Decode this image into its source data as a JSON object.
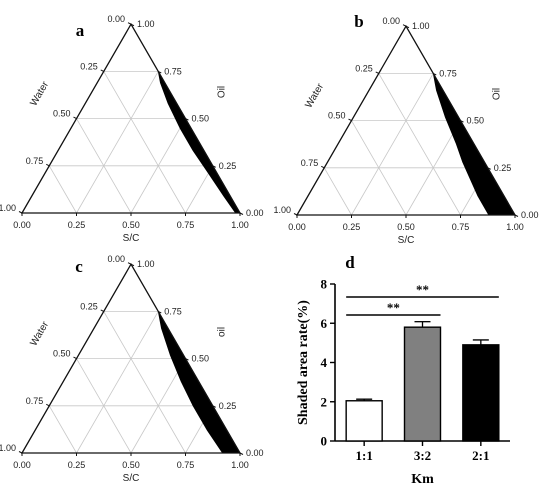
{
  "chart_data": [
    {
      "type": "ternary",
      "panel_label": "a",
      "axes": {
        "water": {
          "label": "Water",
          "ticks": [
            "0.00",
            "0.25",
            "0.50",
            "0.75",
            "1.00"
          ]
        },
        "oil": {
          "label": "Oil",
          "ticks": [
            "0.00",
            "0.25",
            "0.50",
            "0.75",
            "1.00"
          ]
        },
        "sc": {
          "label": "S/C",
          "ticks": [
            "0.00",
            "0.25",
            "0.50",
            "0.75",
            "1.00"
          ]
        }
      },
      "shaded_region": [
        {
          "sc": 0.25,
          "oil": 0.75,
          "water": 0.0
        },
        {
          "sc": 0.29,
          "oil": 0.69,
          "water": 0.02
        },
        {
          "sc": 0.38,
          "oil": 0.58,
          "water": 0.04
        },
        {
          "sc": 0.5,
          "oil": 0.45,
          "water": 0.05
        },
        {
          "sc": 0.62,
          "oil": 0.33,
          "water": 0.05
        },
        {
          "sc": 0.74,
          "oil": 0.22,
          "water": 0.04
        },
        {
          "sc": 0.88,
          "oil": 0.09,
          "water": 0.03
        },
        {
          "sc": 0.98,
          "oil": 0.0,
          "water": 0.02
        },
        {
          "sc": 1.0,
          "oil": 0.0,
          "water": 0.0
        }
      ]
    },
    {
      "type": "ternary",
      "panel_label": "b",
      "axes": {
        "water": {
          "label": "Water",
          "ticks": [
            "0.00",
            "0.25",
            "0.50",
            "0.75",
            "1.00"
          ]
        },
        "oil": {
          "label": "Oil",
          "ticks": [
            "0.00",
            "0.25",
            "0.50",
            "0.75",
            "1.00"
          ]
        },
        "sc": {
          "label": "S/C",
          "ticks": [
            "0.00",
            "0.25",
            "0.50",
            "0.75",
            "1.00"
          ]
        }
      },
      "shaded_region": [
        {
          "sc": 0.25,
          "oil": 0.75,
          "water": 0.0
        },
        {
          "sc": 0.31,
          "oil": 0.66,
          "water": 0.03
        },
        {
          "sc": 0.42,
          "oil": 0.52,
          "water": 0.06
        },
        {
          "sc": 0.54,
          "oil": 0.38,
          "water": 0.08
        },
        {
          "sc": 0.62,
          "oil": 0.28,
          "water": 0.1
        },
        {
          "sc": 0.7,
          "oil": 0.19,
          "water": 0.11
        },
        {
          "sc": 0.78,
          "oil": 0.1,
          "water": 0.12
        },
        {
          "sc": 0.88,
          "oil": 0.0,
          "water": 0.12
        },
        {
          "sc": 1.0,
          "oil": 0.0,
          "water": 0.0
        }
      ]
    },
    {
      "type": "ternary",
      "panel_label": "c",
      "axes": {
        "water": {
          "label": "Water",
          "ticks": [
            "0.00",
            "0.25",
            "0.50",
            "0.75",
            "1.00"
          ]
        },
        "oil": {
          "label": "oil",
          "ticks": [
            "0.00",
            "0.25",
            "0.50",
            "0.75",
            "1.00"
          ]
        },
        "sc": {
          "label": "S/C",
          "ticks": [
            "0.00",
            "0.25",
            "0.50",
            "0.75",
            "1.00"
          ]
        }
      },
      "shaded_region": [
        {
          "sc": 0.25,
          "oil": 0.75,
          "water": 0.0
        },
        {
          "sc": 0.31,
          "oil": 0.66,
          "water": 0.03
        },
        {
          "sc": 0.42,
          "oil": 0.52,
          "water": 0.06
        },
        {
          "sc": 0.54,
          "oil": 0.38,
          "water": 0.08
        },
        {
          "sc": 0.66,
          "oil": 0.25,
          "water": 0.09
        },
        {
          "sc": 0.79,
          "oil": 0.12,
          "water": 0.09
        },
        {
          "sc": 0.92,
          "oil": 0.0,
          "water": 0.08
        },
        {
          "sc": 1.0,
          "oil": 0.0,
          "water": 0.0
        }
      ]
    },
    {
      "type": "bar",
      "panel_label": "d",
      "categories": [
        "1:1",
        "3:2",
        "2:1"
      ],
      "values": [
        2.05,
        5.8,
        4.9
      ],
      "errors": [
        0.08,
        0.28,
        0.25
      ],
      "colors": [
        "#ffffff",
        "#808080",
        "#000000"
      ],
      "ylabel": "Shaded area rate(%)",
      "xlabel": "Km",
      "ylim": [
        0,
        8
      ],
      "yticks": [
        "0",
        "2",
        "4",
        "6",
        "8"
      ],
      "significance": [
        {
          "from": "1:1",
          "to": "3:2",
          "label": "**"
        },
        {
          "from": "1:1",
          "to": "2:1",
          "label": "**"
        }
      ]
    }
  ]
}
